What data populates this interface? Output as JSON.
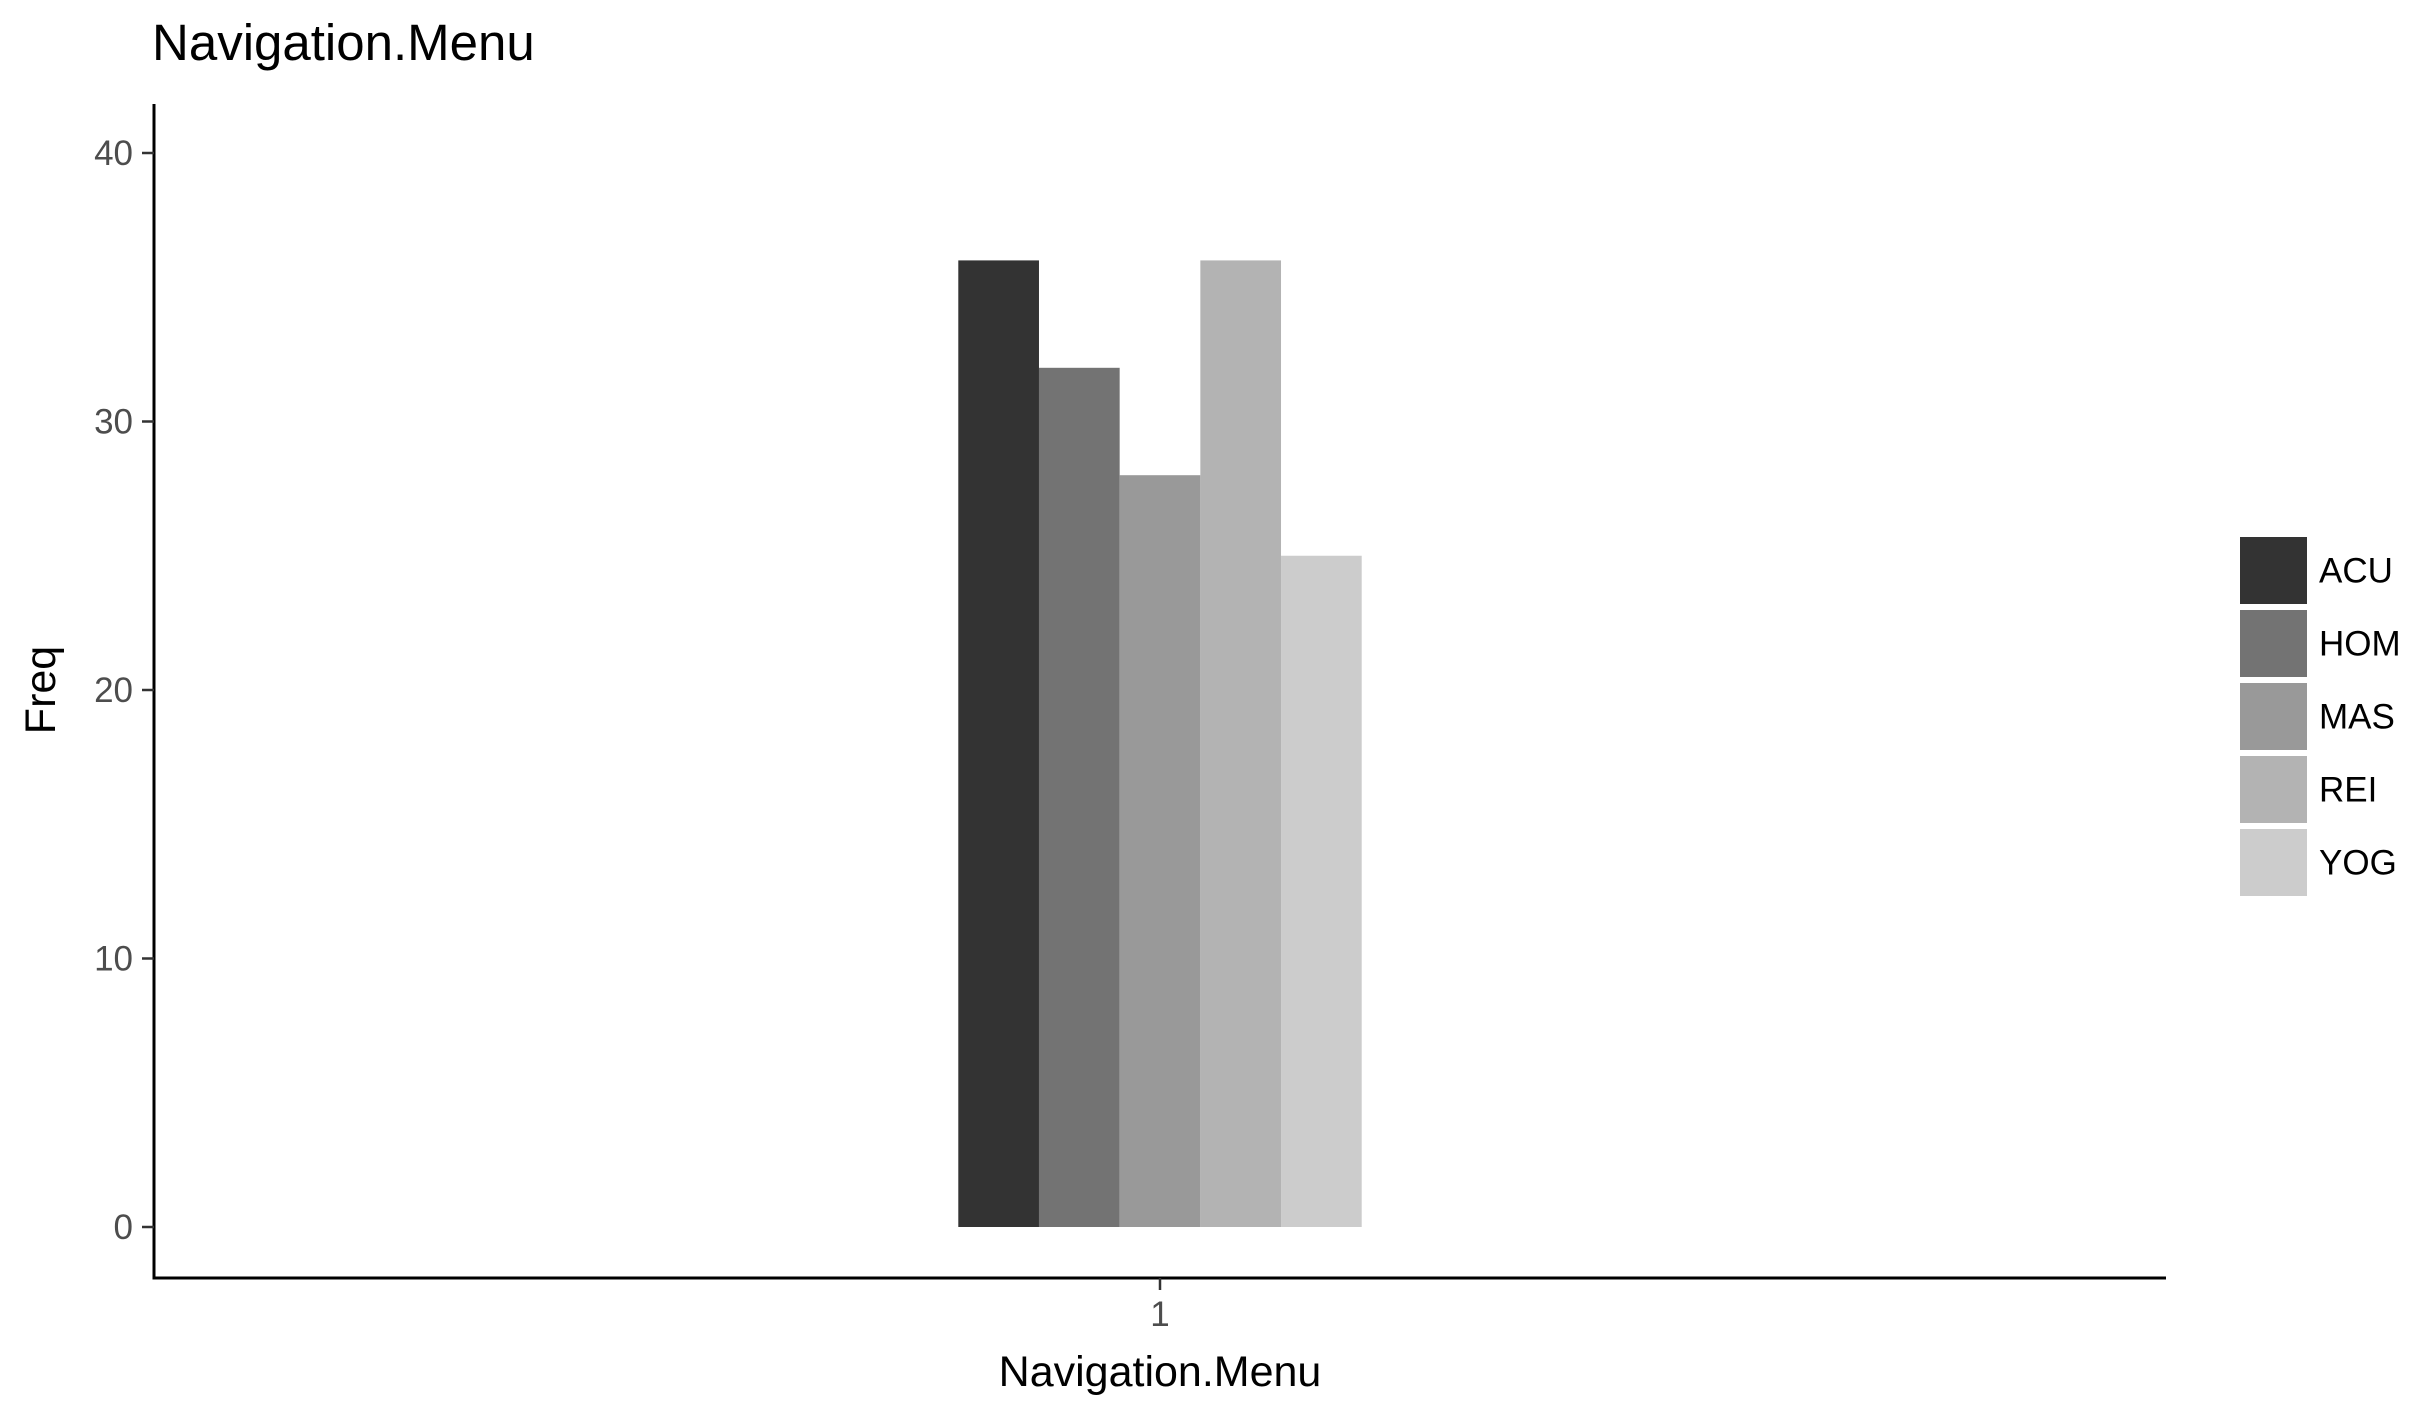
{
  "chart_data": {
    "type": "bar",
    "title": "Navigation.Menu",
    "xlabel": "Navigation.Menu",
    "ylabel": "Freq",
    "categories": [
      "1"
    ],
    "series": [
      {
        "name": "ACU",
        "values": [
          36
        ],
        "color": "#333333"
      },
      {
        "name": "HOM",
        "values": [
          32
        ],
        "color": "#737373"
      },
      {
        "name": "MAS",
        "values": [
          28
        ],
        "color": "#999999"
      },
      {
        "name": "REI",
        "values": [
          36
        ],
        "color": "#b3b3b3"
      },
      {
        "name": "YOG",
        "values": [
          25
        ],
        "color": "#cccccc"
      }
    ],
    "ylim": [
      0,
      40
    ],
    "yticks": [
      0,
      10,
      20,
      30,
      40
    ],
    "grid": false,
    "legend_position": "right"
  }
}
